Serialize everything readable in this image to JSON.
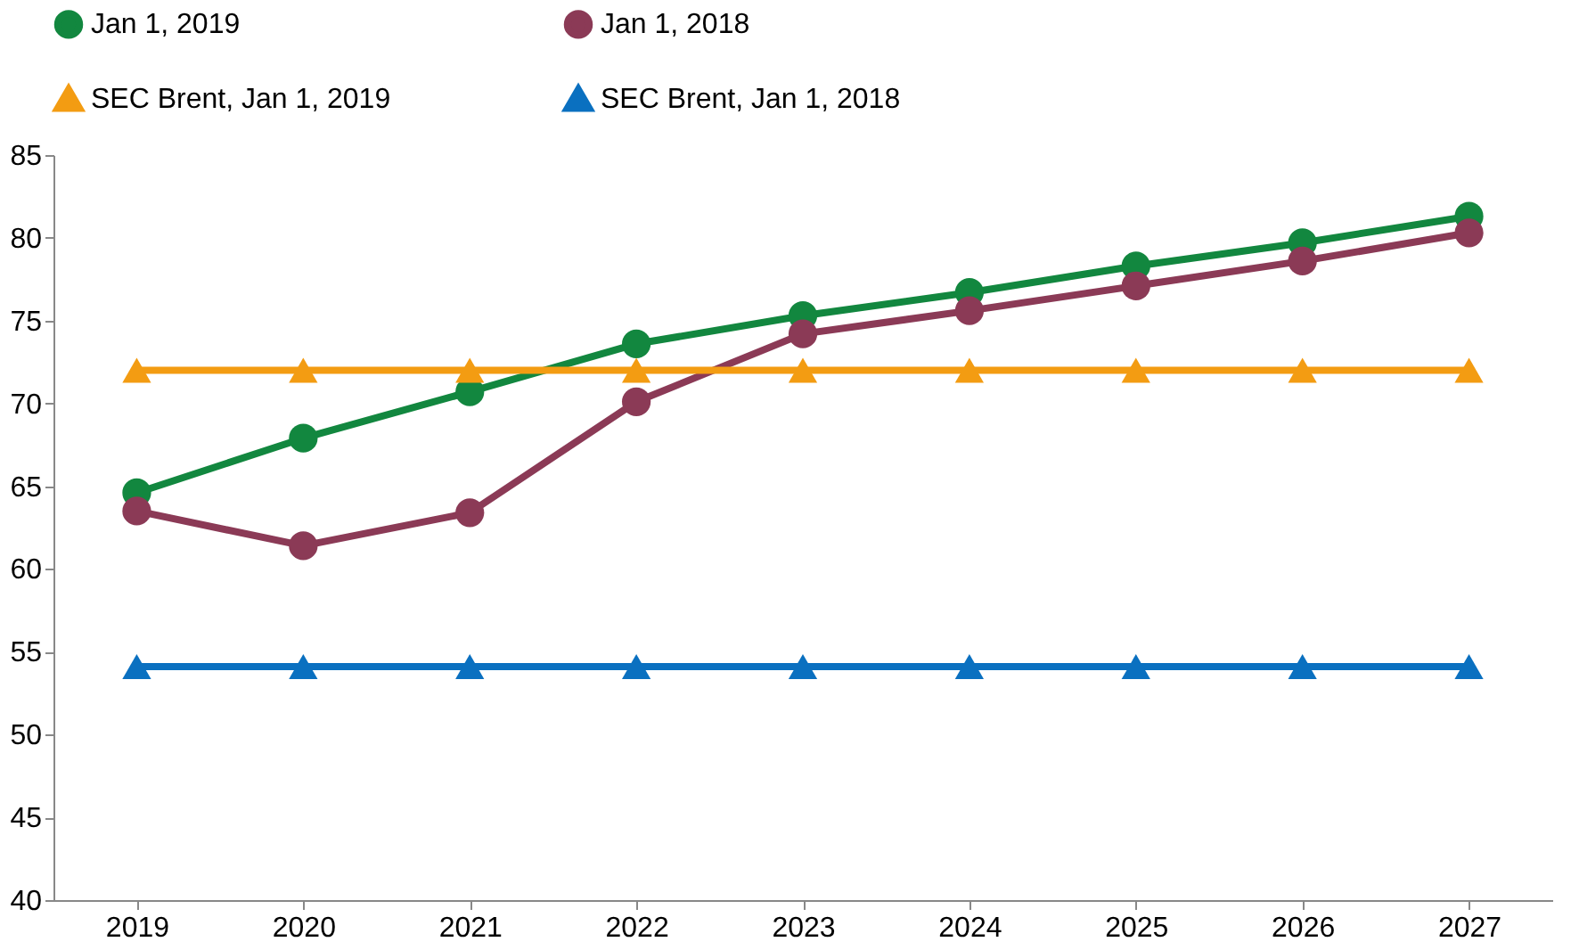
{
  "chart_data": {
    "type": "line",
    "categories": [
      "2019",
      "2020",
      "2021",
      "2022",
      "2023",
      "2024",
      "2025",
      "2026",
      "2027"
    ],
    "series": [
      {
        "name": "Jan 1, 2019",
        "color": "#12873f",
        "marker": "circle",
        "values": [
          64.6,
          67.9,
          70.7,
          73.6,
          75.3,
          76.7,
          78.3,
          79.7,
          81.3
        ]
      },
      {
        "name": "Jan 1, 2018",
        "color": "#8b3a56",
        "marker": "circle",
        "values": [
          63.5,
          61.4,
          63.4,
          70.1,
          74.2,
          75.6,
          77.1,
          78.6,
          80.3
        ]
      },
      {
        "name": "SEC Brent, Jan 1, 2019",
        "color": "#f39c12",
        "marker": "triangle",
        "values": [
          72,
          72,
          72,
          72,
          72,
          72,
          72,
          72,
          72
        ]
      },
      {
        "name": "SEC Brent, Jan 1, 2018",
        "color": "#0a70c0",
        "marker": "triangle",
        "values": [
          54.1,
          54.1,
          54.1,
          54.1,
          54.1,
          54.1,
          54.1,
          54.1,
          54.1
        ]
      }
    ],
    "ylim": [
      40,
      85
    ],
    "yticks": [
      40,
      45,
      50,
      55,
      60,
      65,
      70,
      75,
      80,
      85
    ],
    "grid": false,
    "legend": "top",
    "line_style": "solid"
  }
}
